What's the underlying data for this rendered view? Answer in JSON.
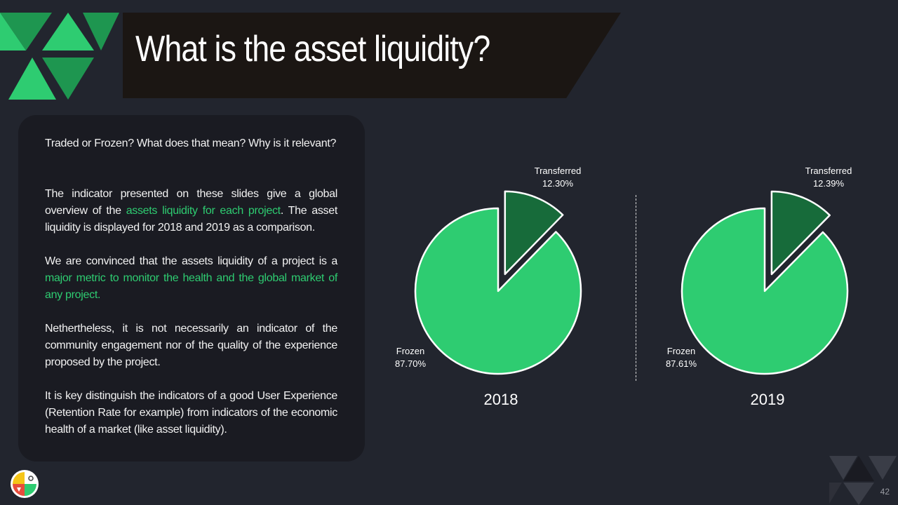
{
  "slide": {
    "title": "What is the asset liquidity?",
    "page_number": "42"
  },
  "text_panel": {
    "p1": "Traded or Frozen? What does that mean? Why is it relevant?",
    "p2_before": "The indicator presented on these slides give a global overview of the ",
    "p2_highlight": "assets liquidity for each project",
    "p2_after": ". The asset liquidity is displayed for 2018 and 2019 as a comparison.",
    "p3_before": "We are convinced that the assets liquidity of a project is a ",
    "p3_highlight": "major metric to monitor the health and the global market of any project.",
    "p4": "Nethertheless, it is not necessarily an indicator of the community engagement nor of the quality of the experience proposed by the project.",
    "p5": "It is key distinguish the indicators of a good User Experience (Retention Rate for example) from indicators of the economic health of a market (like asset liquidity)."
  },
  "colors": {
    "frozen": "#2ecc71",
    "transferred": "#176b3a",
    "highlight": "#2ecc71",
    "background": "#22252e"
  },
  "chart_data": [
    {
      "type": "pie",
      "xlabel": "2018",
      "categories": [
        "Transferred",
        "Frozen"
      ],
      "values": [
        12.3,
        87.7
      ],
      "labels": {
        "transferred_name": "Transferred",
        "transferred_pct": "12.30%",
        "frozen_name": "Frozen",
        "frozen_pct": "87.70%"
      }
    },
    {
      "type": "pie",
      "xlabel": "2019",
      "categories": [
        "Transferred",
        "Frozen"
      ],
      "values": [
        12.39,
        87.61
      ],
      "labels": {
        "transferred_name": "Transferred",
        "transferred_pct": "12.39%",
        "frozen_name": "Frozen",
        "frozen_pct": "87.61%"
      }
    }
  ]
}
